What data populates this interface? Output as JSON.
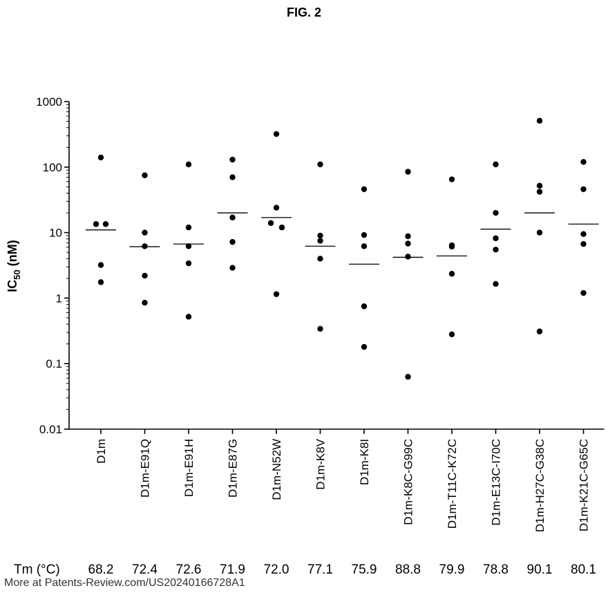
{
  "figure_title": "FIG. 2",
  "chart_data": {
    "type": "scatter",
    "ylabel": "IC50 (nM)",
    "ylabel_main": "IC",
    "ylabel_sub": "50",
    "ylabel_unit": " (nM)",
    "y_scale": "log",
    "ylim": [
      0.01,
      1000
    ],
    "y_ticks": [
      "0.01",
      "0.1",
      "1",
      "10",
      "100",
      "1000"
    ],
    "categories": [
      "D1m",
      "D1m-E91Q",
      "D1m-E91H",
      "D1m-E87G",
      "D1m-N52W",
      "D1m-K8V",
      "D1m-K8I",
      "D1m-K8C-G99C",
      "D1m-T11C-K72C",
      "D1m-E13C-I70C",
      "D1m-H27C-G38C",
      "D1m-K21C-G65C"
    ],
    "points": [
      [
        140,
        13.5,
        13.5,
        3.2,
        1.75
      ],
      [
        75,
        10,
        6.2,
        2.2,
        0.85
      ],
      [
        110,
        12,
        6.2,
        3.4,
        0.52
      ],
      [
        130,
        70,
        17,
        7.2,
        2.9
      ],
      [
        320,
        24,
        14,
        12,
        1.15
      ],
      [
        110,
        9,
        7.5,
        4.0,
        0.34
      ],
      [
        46,
        9.2,
        6.2,
        0.75,
        0.18
      ],
      [
        85,
        8.8,
        6.8,
        4.3,
        0.063
      ],
      [
        65,
        6.1,
        6.4,
        2.35,
        0.28
      ],
      [
        110,
        20,
        8.2,
        5.5,
        1.65
      ],
      [
        510,
        52,
        42,
        10,
        0.31
      ],
      [
        120,
        46,
        9.5,
        6.7,
        1.2
      ]
    ],
    "means": [
      11,
      6.1,
      6.7,
      20,
      17,
      6.2,
      3.3,
      4.2,
      4.4,
      11.3,
      20,
      13.5
    ],
    "tm_label": "Tm (°C)",
    "tm_values": [
      "68.2",
      "72.4",
      "72.6",
      "71.9",
      "72.0",
      "77.1",
      "75.9",
      "88.8",
      "79.9",
      "78.8",
      "90.1",
      "80.1"
    ]
  },
  "footer_text": "More at Patents-Review.com/US20240166728A1"
}
